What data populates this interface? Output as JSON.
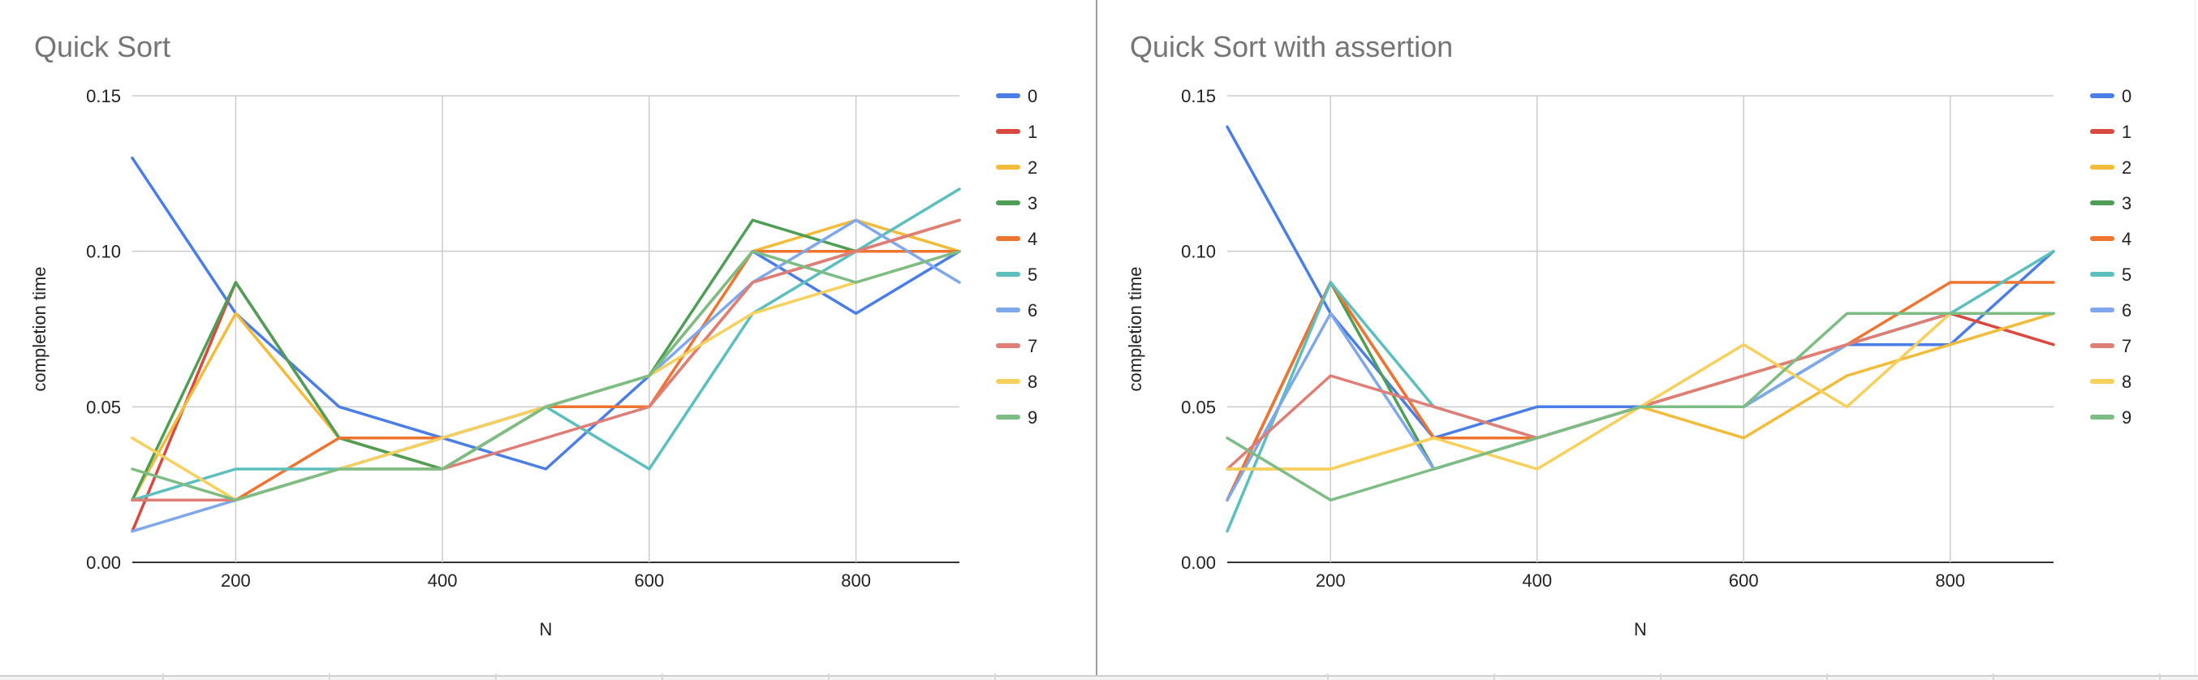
{
  "chart_data": [
    {
      "type": "line",
      "title": "Quick Sort",
      "xlabel": "N",
      "ylabel": "completion time",
      "xlim": [
        100,
        900
      ],
      "ylim": [
        0,
        0.15
      ],
      "x_ticks": [
        200,
        400,
        600,
        800
      ],
      "x_tick_labels": [
        "200",
        "400",
        "600",
        "800"
      ],
      "y_ticks": [
        0,
        0.05,
        0.1,
        0.15
      ],
      "y_tick_labels": [
        "0.00",
        "0.05",
        "0.10",
        "0.15"
      ],
      "grid": true,
      "legend_position": "right",
      "x": [
        100,
        200,
        300,
        400,
        500,
        600,
        700,
        800,
        900
      ],
      "series": [
        {
          "name": "0",
          "color": "#4a7ee6",
          "values": [
            0.13,
            0.08,
            0.05,
            0.04,
            0.03,
            0.06,
            0.1,
            0.08,
            0.1
          ]
        },
        {
          "name": "1",
          "color": "#d9493f",
          "values": [
            0.01,
            0.09,
            0.04,
            0.03,
            0.05,
            0.05,
            0.09,
            0.1,
            0.11
          ]
        },
        {
          "name": "2",
          "color": "#f2bb3a",
          "values": [
            0.02,
            0.08,
            0.04,
            0.03,
            0.05,
            0.06,
            0.1,
            0.11,
            0.1
          ]
        },
        {
          "name": "3",
          "color": "#4e9f55",
          "values": [
            0.02,
            0.09,
            0.04,
            0.03,
            0.05,
            0.06,
            0.11,
            0.1,
            0.1
          ]
        },
        {
          "name": "4",
          "color": "#ee7431",
          "values": [
            0.02,
            0.02,
            0.04,
            0.04,
            0.05,
            0.05,
            0.1,
            0.1,
            0.1
          ]
        },
        {
          "name": "5",
          "color": "#5bbfbe",
          "values": [
            0.02,
            0.03,
            0.03,
            0.04,
            0.05,
            0.03,
            0.08,
            0.1,
            0.12
          ]
        },
        {
          "name": "6",
          "color": "#7ea7ec",
          "values": [
            0.01,
            0.02,
            0.03,
            0.04,
            0.05,
            0.06,
            0.09,
            0.11,
            0.09
          ]
        },
        {
          "name": "7",
          "color": "#df7e75",
          "values": [
            0.02,
            0.02,
            0.03,
            0.03,
            0.04,
            0.05,
            0.09,
            0.1,
            0.11
          ]
        },
        {
          "name": "8",
          "color": "#f7cf5b",
          "values": [
            0.04,
            0.02,
            0.03,
            0.04,
            0.05,
            0.06,
            0.08,
            0.09,
            0.1
          ]
        },
        {
          "name": "9",
          "color": "#7dbd84",
          "values": [
            0.03,
            0.02,
            0.03,
            0.03,
            0.05,
            0.06,
            0.1,
            0.09,
            0.1
          ]
        }
      ]
    },
    {
      "type": "line",
      "title": "Quick Sort with assertion",
      "xlabel": "N",
      "ylabel": "completion time",
      "xlim": [
        100,
        900
      ],
      "ylim": [
        0,
        0.15
      ],
      "x_ticks": [
        200,
        400,
        600,
        800
      ],
      "x_tick_labels": [
        "200",
        "400",
        "600",
        "800"
      ],
      "y_ticks": [
        0,
        0.05,
        0.1,
        0.15
      ],
      "y_tick_labels": [
        "0.00",
        "0.05",
        "0.10",
        "0.15"
      ],
      "grid": true,
      "legend_position": "right",
      "x": [
        100,
        200,
        300,
        400,
        500,
        600,
        700,
        800,
        900
      ],
      "series": [
        {
          "name": "0",
          "color": "#4a7ee6",
          "values": [
            0.14,
            0.08,
            0.04,
            0.05,
            0.05,
            0.05,
            0.07,
            0.07,
            0.1
          ]
        },
        {
          "name": "1",
          "color": "#d9493f",
          "values": [
            0.02,
            0.09,
            0.04,
            0.04,
            0.05,
            0.06,
            0.07,
            0.08,
            0.07
          ]
        },
        {
          "name": "2",
          "color": "#f2bb3a",
          "values": [
            0.03,
            0.03,
            0.04,
            0.04,
            0.05,
            0.04,
            0.06,
            0.07,
            0.08
          ]
        },
        {
          "name": "3",
          "color": "#4e9f55",
          "values": [
            0.02,
            0.09,
            0.03,
            0.04,
            0.05,
            0.05,
            0.07,
            0.08,
            0.08
          ]
        },
        {
          "name": "4",
          "color": "#ee7431",
          "values": [
            0.02,
            0.09,
            0.04,
            0.04,
            0.05,
            0.06,
            0.07,
            0.09,
            0.09
          ]
        },
        {
          "name": "5",
          "color": "#5bbfbe",
          "values": [
            0.01,
            0.09,
            0.05,
            0.04,
            0.05,
            0.05,
            0.07,
            0.08,
            0.1
          ]
        },
        {
          "name": "6",
          "color": "#7ea7ec",
          "values": [
            0.02,
            0.08,
            0.03,
            0.04,
            0.05,
            0.05,
            0.07,
            0.08,
            0.08
          ]
        },
        {
          "name": "7",
          "color": "#df7e75",
          "values": [
            0.03,
            0.06,
            0.05,
            0.04,
            0.05,
            0.06,
            0.07,
            0.08,
            0.08
          ]
        },
        {
          "name": "8",
          "color": "#f7cf5b",
          "values": [
            0.03,
            0.03,
            0.04,
            0.03,
            0.05,
            0.07,
            0.05,
            0.08,
            0.08
          ]
        },
        {
          "name": "9",
          "color": "#7dbd84",
          "values": [
            0.04,
            0.02,
            0.03,
            0.04,
            0.05,
            0.05,
            0.08,
            0.08,
            0.08
          ]
        }
      ]
    }
  ]
}
